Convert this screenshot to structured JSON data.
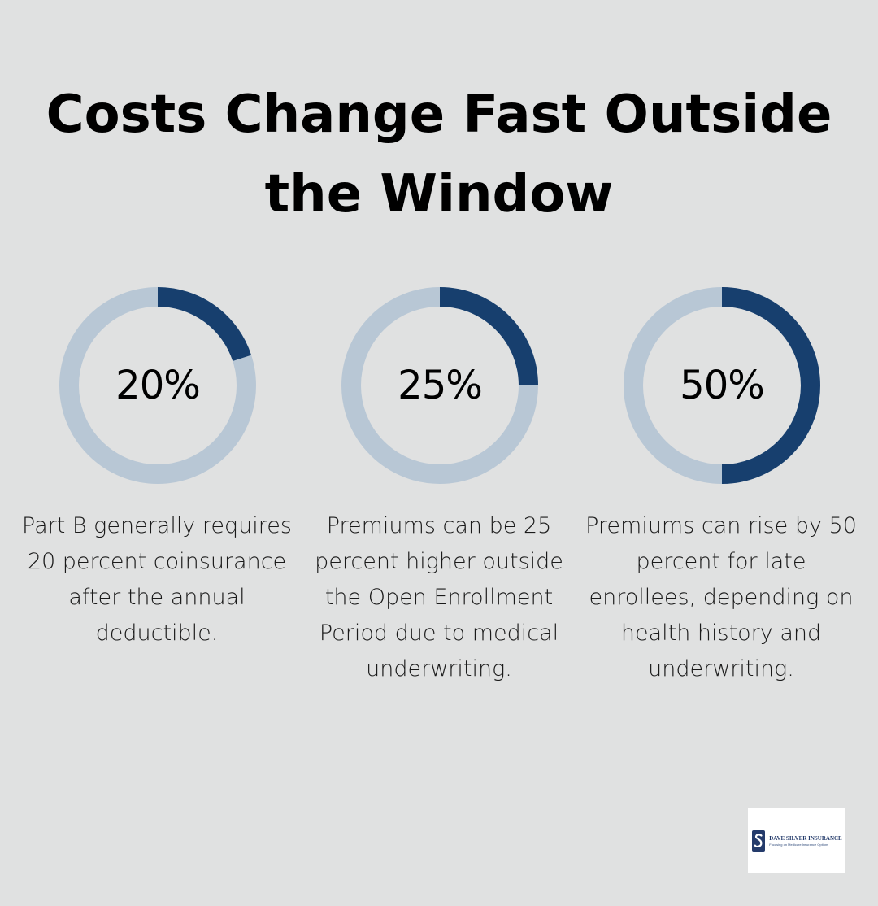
{
  "title": "Costs Change Fast Outside the Window",
  "colors": {
    "background": "#e0e1e1",
    "accent": "#173f6e",
    "track": "#b8c7d5"
  },
  "chart_data": [
    {
      "type": "pie",
      "values": [
        20
      ],
      "label": "20%",
      "description": "Part B generally requires 20 percent coinsurance after the annual deductible."
    },
    {
      "type": "pie",
      "values": [
        25
      ],
      "label": "25%",
      "description": "Premiums can be 25 percent higher outside the Open Enrollment Period due to medical underwriting."
    },
    {
      "type": "pie",
      "values": [
        50
      ],
      "label": "50%",
      "description": "Premiums can rise by 50 percent for late enrollees, depending on health history and underwriting."
    }
  ],
  "logo": {
    "name": "DAVE SILVER INSURANCE",
    "tagline": "Focusing on Medicare Insurance Options"
  }
}
